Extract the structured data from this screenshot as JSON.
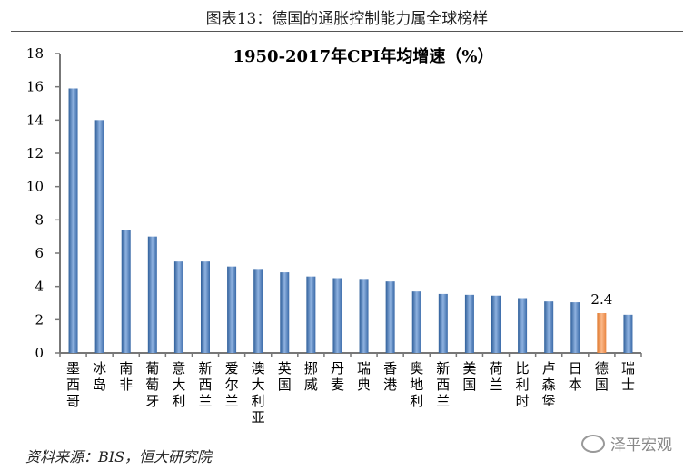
{
  "figure_title": "图表13：德国的通胀控制能力属全球榜样",
  "source": "资料来源：BIS，恒大研究院",
  "watermark": "泽平宏观",
  "colors": {
    "bar": "#4f81bd",
    "highlight": "#f79646"
  },
  "chart_data": {
    "type": "bar",
    "title": "1950-2017年CPI年均增速（%）",
    "xlabel": "",
    "ylabel": "",
    "ylim": [
      0,
      18
    ],
    "yticks": [
      0,
      2,
      4,
      6,
      8,
      10,
      12,
      14,
      16,
      18
    ],
    "grid": false,
    "categories": [
      "墨西哥",
      "冰岛",
      "南非",
      "葡萄牙",
      "意大利",
      "新西兰",
      "爱尔兰",
      "澳大利亚",
      "英国",
      "挪威",
      "丹麦",
      "瑞典",
      "香港",
      "奥地利",
      "新西兰",
      "美国",
      "荷兰",
      "比利时",
      "卢森堡",
      "日本",
      "德国",
      "瑞士"
    ],
    "values": [
      15.9,
      14.0,
      7.4,
      7.0,
      5.5,
      5.5,
      5.2,
      5.0,
      4.85,
      4.6,
      4.5,
      4.4,
      4.3,
      3.7,
      3.55,
      3.5,
      3.45,
      3.3,
      3.1,
      3.05,
      2.4,
      2.3
    ],
    "highlight_index": 20,
    "data_labels": [
      {
        "index": 20,
        "text": "2.4"
      }
    ]
  }
}
